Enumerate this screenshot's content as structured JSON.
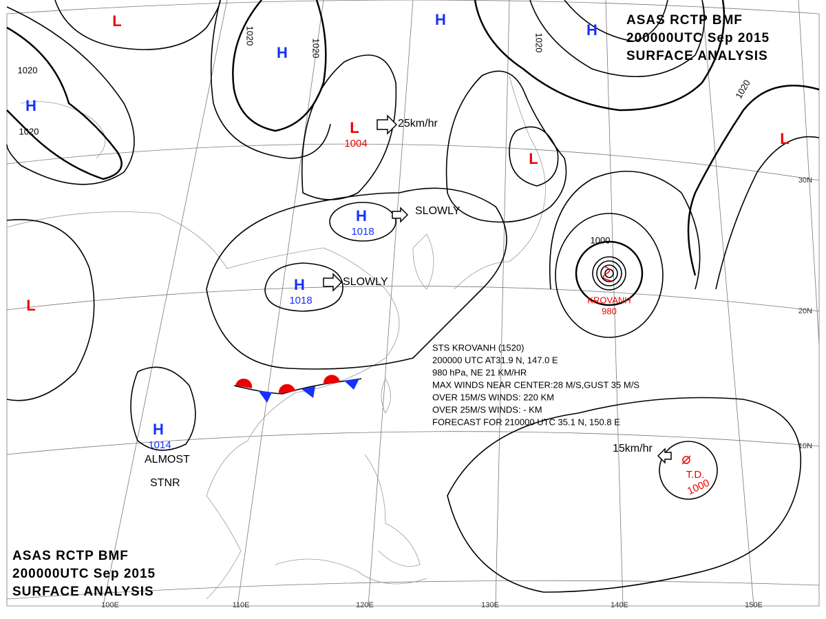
{
  "header": {
    "lines": [
      "ASAS    RCTP    BMF",
      "200000UTC    Sep    2015",
      "SURFACE  ANALYSIS"
    ]
  },
  "systems": [
    {
      "type": "L"
    },
    {
      "type": "H"
    },
    {
      "type": "H"
    },
    {
      "type": "H"
    },
    {
      "type": "L",
      "pressure": 1004
    },
    {
      "type": "H",
      "pressure": 1018
    },
    {
      "type": "H",
      "pressure": 1018
    },
    {
      "type": "L"
    },
    {
      "type": "L"
    },
    {
      "type": "L"
    },
    {
      "type": "H",
      "pressure": 1014
    },
    {
      "type": "H"
    }
  ],
  "isobars": [
    1020,
    1020,
    1020,
    1020,
    1020,
    1020,
    1000
  ],
  "motions": [
    "25km/hr",
    "SLOWLY",
    "SLOWLY",
    "15km/hr",
    "ALMOST",
    "STNR"
  ],
  "storm": {
    "name": "KROVANH",
    "pressure": 980,
    "bulletin": [
      "STS  KROVANH  (1520)",
      "200000 UTC  AT31.9 N, 147.0 E",
      "980 hPa, NE  21 KM/HR",
      "MAX WINDS NEAR CENTER:28 M/S,GUST 35 M/S",
      "OVER 15M/S WINDS: 220 KM",
      "OVER 25M/S WINDS: - KM",
      "FORECAST FOR 210000 UTC 35.1 N, 150.8 E"
    ]
  },
  "td": {
    "label": "T.D.",
    "pressure": 1000
  },
  "longitudes": [
    "100E",
    "110E",
    "120E",
    "130E",
    "140E",
    "150E"
  ],
  "latitudes": [
    "30N",
    "20N",
    "10N"
  ]
}
